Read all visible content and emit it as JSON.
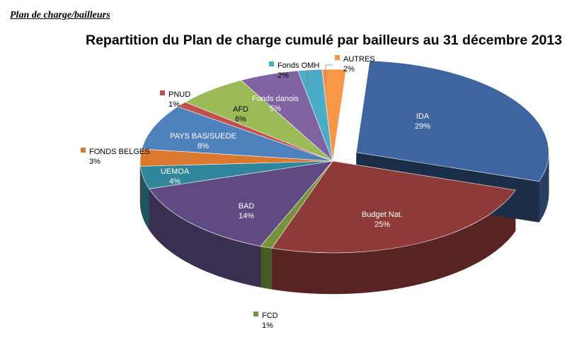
{
  "section_title": "Plan de charge/bailleurs",
  "chart_data": {
    "type": "pie",
    "style": "3d-exploded",
    "title": "Repartition du Plan de charge cumulé par bailleurs au 31 décembre 2013",
    "slices": [
      {
        "label": "IDA",
        "value": 29,
        "pct": "29%",
        "color": "#3e65a0"
      },
      {
        "label": "Budget Nat.",
        "value": 25,
        "pct": "25%",
        "color": "#8e3a38"
      },
      {
        "label": "FCD",
        "value": 1,
        "pct": "1%",
        "color": "#76933c"
      },
      {
        "label": "BAD",
        "value": 14,
        "pct": "14%",
        "color": "#5f4b82"
      },
      {
        "label": "UEMOA",
        "value": 4,
        "pct": "4%",
        "color": "#31869b"
      },
      {
        "label": "FONDS BELGES",
        "value": 3,
        "pct": "3%",
        "color": "#d9782e"
      },
      {
        "label": "PAYS BAS/SUEDE",
        "value": 8,
        "pct": "8%",
        "color": "#4f81bd"
      },
      {
        "label": "PNUD",
        "value": 1,
        "pct": "1%",
        "color": "#c0504d"
      },
      {
        "label": "AFD",
        "value": 6,
        "pct": "6%",
        "color": "#9bbb59"
      },
      {
        "label": "Fonds danois",
        "value": 5,
        "pct": "5%",
        "color": "#8064a2"
      },
      {
        "label": "Fonds OMH",
        "value": 2,
        "pct": "2%",
        "color": "#4bacc6"
      },
      {
        "label": "AUTRES",
        "value": 2,
        "pct": "2%",
        "color": "#f79646"
      }
    ]
  }
}
